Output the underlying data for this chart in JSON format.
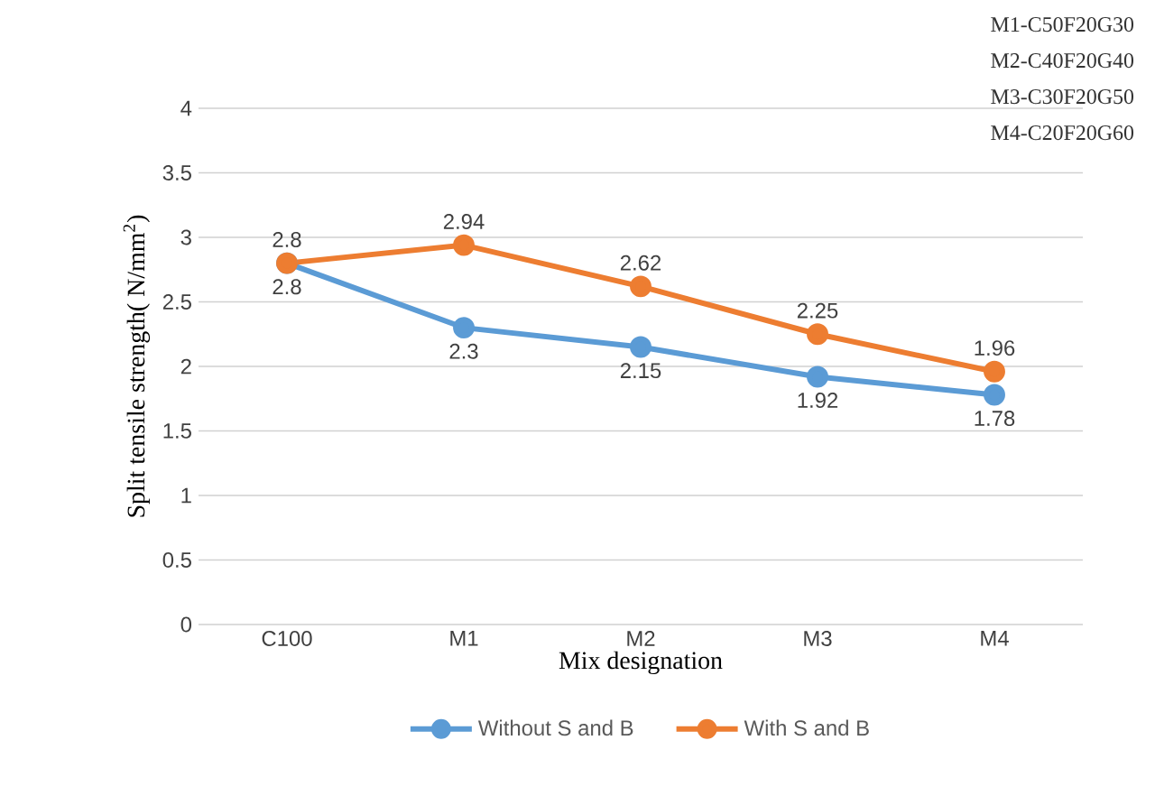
{
  "chart_data": {
    "type": "line",
    "xlabel": "Mix designation",
    "ylabel": "Split tensile strength( N/mm$^{2}$)",
    "categories": [
      "C100",
      "M1",
      "M2",
      "M3",
      "M4"
    ],
    "series": [
      {
        "name": "Without S and B",
        "color": "#5b9bd5",
        "values": [
          2.8,
          2.3,
          2.15,
          1.92,
          1.78
        ]
      },
      {
        "name": "With S and B",
        "color": "#ed7d31",
        "values": [
          2.8,
          2.94,
          2.62,
          2.25,
          1.96
        ]
      }
    ],
    "ylim": [
      0,
      4
    ],
    "yticks": [
      0,
      0.5,
      1,
      1.5,
      2,
      2.5,
      3,
      3.5,
      4
    ],
    "grid": "y",
    "legend": "bottom",
    "marker": "circle",
    "line_style": "solid",
    "data_labels": true,
    "annotations": [
      "M1-C50F20G30",
      "M2-C40F20G40",
      "M3-C30F20G50",
      "M4-C20F20G60"
    ]
  }
}
